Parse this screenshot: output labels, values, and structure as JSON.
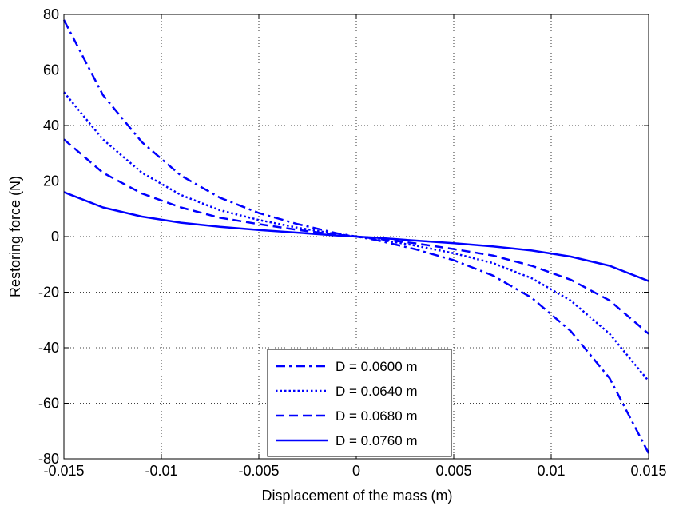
{
  "chart_data": {
    "type": "line",
    "title": "",
    "xlabel": "Displacement of the mass (m)",
    "ylabel": "Restoring force (N)",
    "xlim": [
      -0.015,
      0.015
    ],
    "ylim": [
      -80,
      80
    ],
    "xticks": [
      -0.015,
      -0.01,
      -0.005,
      0,
      0.005,
      0.01,
      0.015
    ],
    "xtick_labels": [
      "-0.015",
      "-0.01",
      "-0.005",
      "0",
      "0.005",
      "0.01",
      "0.015"
    ],
    "yticks": [
      -80,
      -60,
      -40,
      -20,
      0,
      20,
      40,
      60,
      80
    ],
    "ytick_labels": [
      "-80",
      "-60",
      "-40",
      "-20",
      "0",
      "20",
      "40",
      "60",
      "80"
    ],
    "grid": true,
    "legend_position": "bottom-center",
    "line_color": "#0000ff",
    "x": [
      -0.015,
      -0.013,
      -0.011,
      -0.009,
      -0.007,
      -0.005,
      -0.003,
      -0.001,
      0,
      0.001,
      0.003,
      0.005,
      0.007,
      0.009,
      0.011,
      0.013,
      0.015
    ],
    "series": [
      {
        "name": "D = 0.0600 m",
        "style": "dashdot",
        "values": [
          78,
          51,
          34,
          22,
          14,
          8.5,
          4.5,
          1.2,
          0,
          -1.2,
          -4.5,
          -8.5,
          -14,
          -22,
          -34,
          -51,
          -78
        ]
      },
      {
        "name": "D = 0.0640 m",
        "style": "dotted",
        "values": [
          52,
          35,
          23,
          15,
          9.5,
          6,
          3.2,
          0.9,
          0,
          -0.9,
          -3.2,
          -6,
          -9.5,
          -15,
          -23,
          -35,
          -52
        ]
      },
      {
        "name": "D = 0.0680 m",
        "style": "dashed",
        "values": [
          35,
          23,
          15.5,
          10.5,
          6.8,
          4.5,
          2.4,
          0.7,
          0,
          -0.7,
          -2.4,
          -4.5,
          -6.8,
          -10.5,
          -15.5,
          -23,
          -35
        ]
      },
      {
        "name": "D = 0.0760 m",
        "style": "solid",
        "values": [
          16,
          10.5,
          7.2,
          5,
          3.5,
          2.4,
          1.4,
          0.4,
          0,
          -0.4,
          -1.4,
          -2.4,
          -3.5,
          -5,
          -7.2,
          -10.5,
          -16
        ]
      }
    ]
  }
}
